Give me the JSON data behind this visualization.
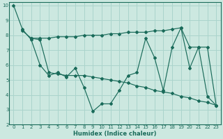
{
  "xlabel": "Humidex (Indice chaleur)",
  "bg_color": "#cce8e0",
  "line_color": "#1a6b5a",
  "grid_color": "#aad4cc",
  "xlim": [
    -0.5,
    23.5
  ],
  "ylim": [
    2,
    10.2
  ],
  "yticks": [
    2,
    3,
    4,
    5,
    6,
    7,
    8,
    9,
    10
  ],
  "xticks": [
    0,
    1,
    2,
    3,
    4,
    5,
    6,
    7,
    8,
    9,
    10,
    11,
    12,
    13,
    14,
    15,
    16,
    17,
    18,
    19,
    20,
    21,
    22,
    23
  ],
  "line1_x": [
    0,
    1,
    2,
    3,
    4,
    5,
    6,
    7,
    8,
    9,
    10,
    11,
    12,
    13,
    14,
    15,
    16,
    17,
    18,
    19,
    20,
    21,
    22,
    23
  ],
  "line1_y": [
    10.0,
    8.4,
    7.7,
    6.0,
    5.3,
    5.5,
    5.2,
    5.8,
    4.5,
    2.9,
    3.4,
    3.4,
    4.3,
    5.3,
    5.5,
    7.8,
    6.5,
    4.3,
    7.2,
    8.5,
    5.8,
    7.2,
    3.9,
    3.3
  ],
  "line2_x": [
    1,
    2,
    3,
    4,
    5,
    6,
    7,
    8,
    9,
    10,
    11,
    12,
    13,
    14,
    15,
    16,
    17,
    18,
    19,
    20,
    21,
    22,
    23
  ],
  "line2_y": [
    8.3,
    7.8,
    7.8,
    7.8,
    7.9,
    7.9,
    7.9,
    8.0,
    8.0,
    8.0,
    8.1,
    8.1,
    8.2,
    8.2,
    8.2,
    8.3,
    8.3,
    8.4,
    8.5,
    7.2,
    7.2,
    7.2,
    3.3
  ],
  "line3_x": [
    2,
    3,
    4,
    5,
    6,
    7,
    8,
    9,
    10,
    11,
    12,
    13,
    14,
    15,
    16,
    17,
    18,
    19,
    20,
    21,
    22,
    23
  ],
  "line3_y": [
    7.8,
    7.7,
    5.5,
    5.4,
    5.3,
    5.3,
    5.3,
    5.2,
    5.1,
    5.0,
    4.9,
    4.8,
    4.6,
    4.5,
    4.3,
    4.2,
    4.1,
    3.9,
    3.8,
    3.6,
    3.5,
    3.3
  ]
}
